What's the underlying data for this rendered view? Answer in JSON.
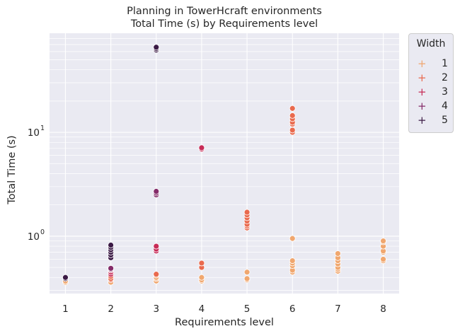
{
  "chart_data": {
    "type": "scatter",
    "title": "Planning in TowerHcraft environments",
    "subtitle": "Total Time (s) by Requirements level",
    "xlabel": "Requirements level",
    "ylabel": "Total Time (s)",
    "x_ticks": [
      "1",
      "2",
      "3",
      "4",
      "5",
      "6",
      "7",
      "8"
    ],
    "y_scale": "log",
    "y_ticks": [
      {
        "value": 1,
        "label": "10",
        "exp": "0"
      },
      {
        "value": 10,
        "label": "10",
        "exp": "1"
      }
    ],
    "xlim": [
      0.65,
      8.35
    ],
    "ylim": [
      0.28,
      90
    ],
    "grid": true,
    "legend_title": "Width",
    "legend_position": "upper-right, outside plot",
    "series": [
      {
        "name": "1",
        "color": "#f0a76f",
        "points": [
          [
            1,
            0.36
          ],
          [
            1,
            0.37
          ],
          [
            2,
            0.36
          ],
          [
            2,
            0.38
          ],
          [
            3,
            0.37
          ],
          [
            3,
            0.39
          ],
          [
            3,
            0.4
          ],
          [
            3,
            0.42
          ],
          [
            4,
            0.37
          ],
          [
            4,
            0.38
          ],
          [
            4,
            0.4
          ],
          [
            5,
            0.38
          ],
          [
            5,
            0.39
          ],
          [
            5,
            0.45
          ],
          [
            6,
            0.45
          ],
          [
            6,
            0.47
          ],
          [
            6,
            0.52
          ],
          [
            6,
            0.55
          ],
          [
            6,
            0.58
          ],
          [
            6,
            0.95
          ],
          [
            7,
            0.46
          ],
          [
            7,
            0.48
          ],
          [
            7,
            0.5
          ],
          [
            7,
            0.54
          ],
          [
            7,
            0.58
          ],
          [
            7,
            0.62
          ],
          [
            7,
            0.68
          ],
          [
            8,
            0.58
          ],
          [
            8,
            0.6
          ],
          [
            8,
            0.7
          ],
          [
            8,
            0.72
          ],
          [
            8,
            0.8
          ],
          [
            8,
            0.88
          ],
          [
            8,
            0.9
          ]
        ]
      },
      {
        "name": "2",
        "color": "#e96a4e",
        "points": [
          [
            2,
            0.38
          ],
          [
            2,
            0.39
          ],
          [
            2,
            0.41
          ],
          [
            3,
            0.43
          ],
          [
            4,
            0.5
          ],
          [
            4,
            0.55
          ],
          [
            5,
            1.2
          ],
          [
            5,
            1.25
          ],
          [
            5,
            1.3
          ],
          [
            5,
            1.4
          ],
          [
            5,
            1.5
          ],
          [
            5,
            1.6
          ],
          [
            5,
            1.7
          ],
          [
            6,
            10.0
          ],
          [
            6,
            10.5
          ],
          [
            6,
            12.0
          ],
          [
            6,
            12.5
          ],
          [
            6,
            13.5
          ],
          [
            6,
            14.5
          ],
          [
            6,
            17.0
          ]
        ]
      },
      {
        "name": "3",
        "color": "#c72c57",
        "points": [
          [
            2,
            0.43
          ],
          [
            2,
            0.45
          ],
          [
            2,
            0.47
          ],
          [
            3,
            0.72
          ],
          [
            3,
            0.75
          ],
          [
            3,
            0.8
          ],
          [
            4,
            6.9
          ],
          [
            4,
            7.1
          ]
        ]
      },
      {
        "name": "4",
        "color": "#842c69",
        "points": [
          [
            2,
            0.48
          ],
          [
            2,
            0.49
          ],
          [
            3,
            2.5
          ],
          [
            3,
            2.6
          ],
          [
            3,
            2.7
          ]
        ]
      },
      {
        "name": "5",
        "color": "#3b1a45",
        "points": [
          [
            1,
            0.39
          ],
          [
            1,
            0.4
          ],
          [
            2,
            0.62
          ],
          [
            2,
            0.66
          ],
          [
            2,
            0.7
          ],
          [
            2,
            0.74
          ],
          [
            2,
            0.78
          ],
          [
            2,
            0.82
          ],
          [
            3,
            62
          ],
          [
            3,
            64
          ],
          [
            3,
            66
          ]
        ]
      }
    ]
  }
}
